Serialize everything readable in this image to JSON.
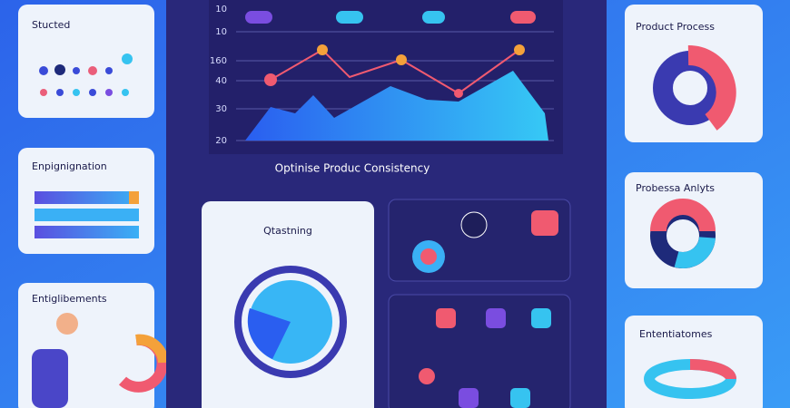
{
  "left_cards": [
    {
      "title": "Stucted"
    },
    {
      "title": "Enpignignation"
    },
    {
      "title": "Entiglibements"
    }
  ],
  "right_cards": [
    {
      "title": "Product Process"
    },
    {
      "title": "Probessa Anlyts"
    },
    {
      "title": "Ententiatomes"
    }
  ],
  "center_chart": {
    "axis_labels": [
      "10",
      "10",
      "160",
      "40",
      "30",
      "20"
    ],
    "caption": "Optinise Produc Consistency"
  },
  "lower_card": {
    "title": "Qtastning"
  }
}
